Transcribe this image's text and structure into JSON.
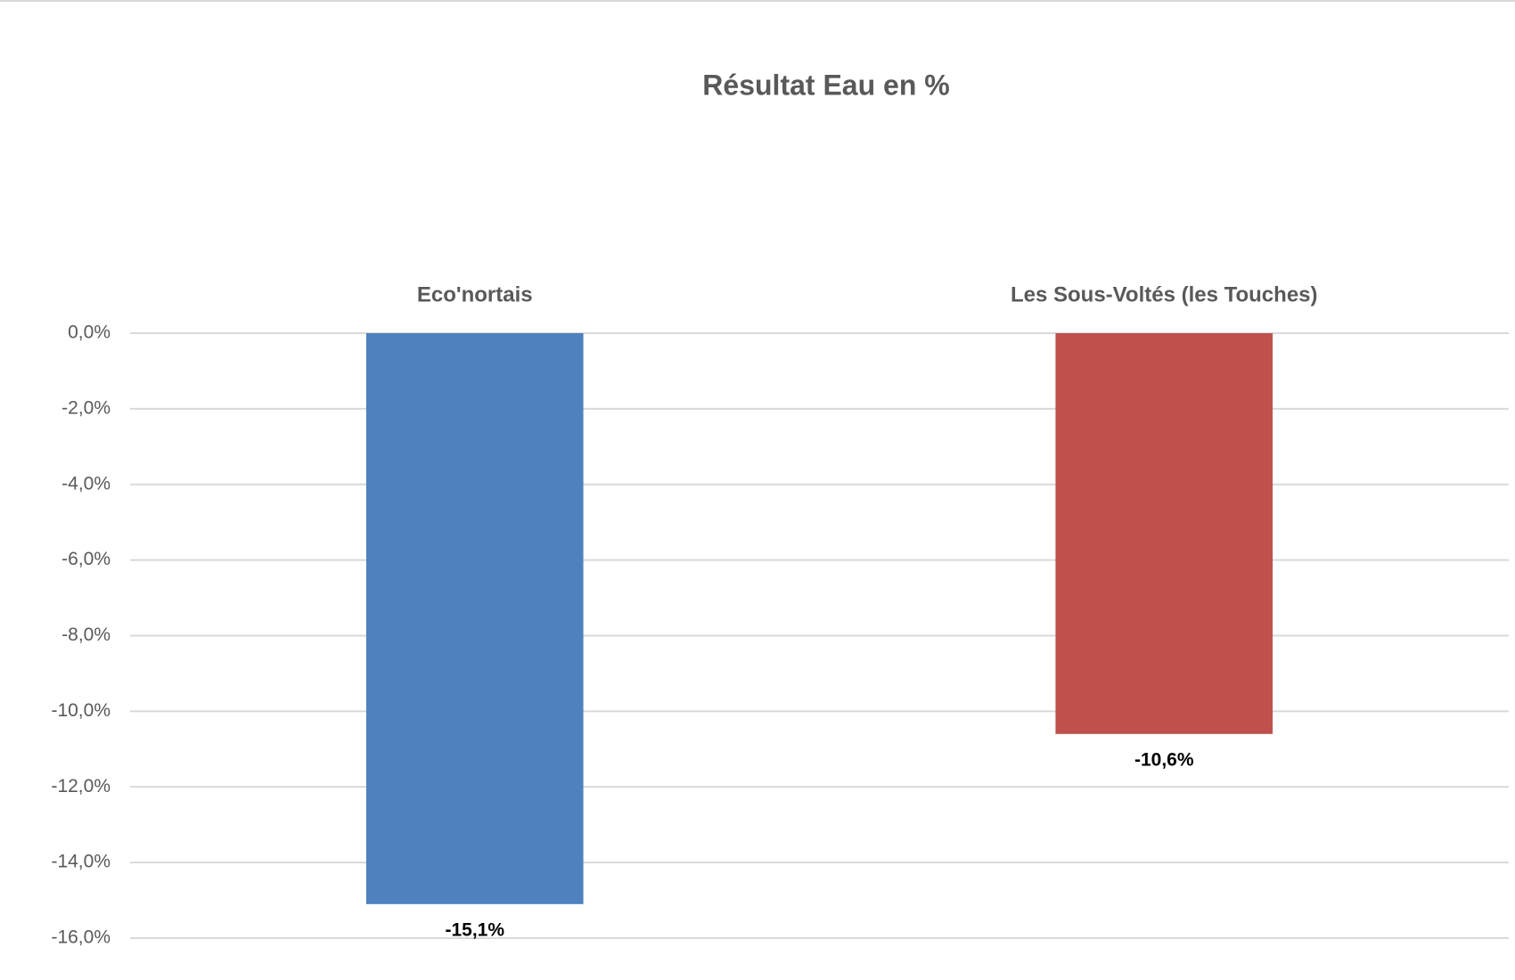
{
  "chart_data": {
    "type": "bar",
    "title": "Résultat Eau en %",
    "categories": [
      "Eco'nortais",
      "Les Sous-Voltés (les Touches)"
    ],
    "values": [
      -15.1,
      -10.6
    ],
    "value_labels": [
      "-15,1%",
      "-10,6%"
    ],
    "colors": [
      "#4f81bd",
      "#c0504d"
    ],
    "ylim": [
      -16,
      0
    ],
    "yticks": [
      {
        "value": 0,
        "label": "0,0%"
      },
      {
        "value": -2,
        "label": "-2,0%"
      },
      {
        "value": -4,
        "label": "-4,0%"
      },
      {
        "value": -6,
        "label": "-6,0%"
      },
      {
        "value": -8,
        "label": "-8,0%"
      },
      {
        "value": -10,
        "label": "-10,0%"
      },
      {
        "value": -12,
        "label": "-12,0%"
      },
      {
        "value": -14,
        "label": "-14,0%"
      },
      {
        "value": -16,
        "label": "-16,0%"
      }
    ],
    "grid": true
  }
}
